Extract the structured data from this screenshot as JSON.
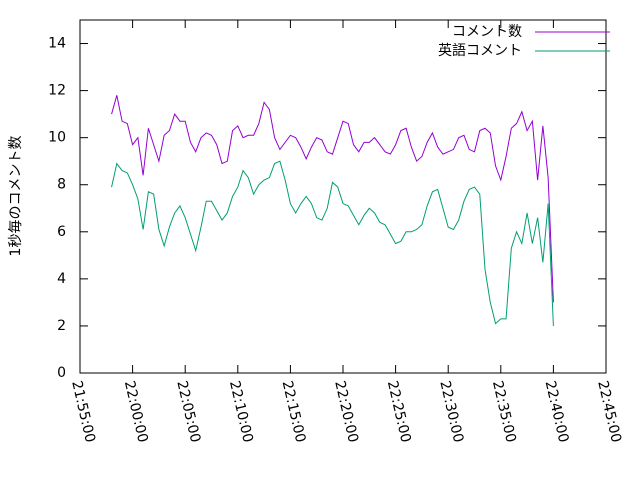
{
  "chart_data": {
    "type": "line",
    "y_label": "1秒毎のコメント数",
    "x": [
      "21:58:00",
      "21:58:30",
      "21:59:00",
      "21:59:30",
      "22:00:00",
      "22:00:30",
      "22:01:00",
      "22:01:30",
      "22:02:00",
      "22:02:30",
      "22:03:00",
      "22:03:30",
      "22:04:00",
      "22:04:30",
      "22:05:00",
      "22:05:30",
      "22:06:00",
      "22:06:30",
      "22:07:00",
      "22:07:30",
      "22:08:00",
      "22:08:30",
      "22:09:00",
      "22:09:30",
      "22:10:00",
      "22:10:30",
      "22:11:00",
      "22:11:30",
      "22:12:00",
      "22:12:30",
      "22:13:00",
      "22:13:30",
      "22:14:00",
      "22:14:30",
      "22:15:00",
      "22:15:30",
      "22:16:00",
      "22:16:30",
      "22:17:00",
      "22:17:30",
      "22:18:00",
      "22:18:30",
      "22:19:00",
      "22:19:30",
      "22:20:00",
      "22:20:30",
      "22:21:00",
      "22:21:30",
      "22:22:00",
      "22:22:30",
      "22:23:00",
      "22:23:30",
      "22:24:00",
      "22:24:30",
      "22:25:00",
      "22:25:30",
      "22:26:00",
      "22:26:30",
      "22:27:00",
      "22:27:30",
      "22:28:00",
      "22:28:30",
      "22:29:00",
      "22:29:30",
      "22:30:00",
      "22:30:30",
      "22:31:00",
      "22:31:30",
      "22:32:00",
      "22:32:30",
      "22:33:00",
      "22:33:30",
      "22:34:00",
      "22:34:30",
      "22:35:00",
      "22:35:30",
      "22:36:00",
      "22:36:30",
      "22:37:00",
      "22:37:30",
      "22:38:00",
      "22:38:30",
      "22:39:00",
      "22:39:30",
      "22:40:00"
    ],
    "series": [
      {
        "name": "コメント数",
        "color": "#9400d3",
        "values": [
          11.0,
          11.8,
          10.7,
          10.6,
          9.7,
          10.0,
          8.4,
          10.4,
          9.7,
          9.0,
          10.1,
          10.3,
          11.0,
          10.7,
          10.7,
          9.8,
          9.4,
          10.0,
          10.2,
          10.1,
          9.7,
          8.9,
          9.0,
          10.3,
          10.5,
          10.0,
          10.1,
          10.1,
          10.6,
          11.5,
          11.2,
          10.0,
          9.5,
          9.8,
          10.1,
          10.0,
          9.6,
          9.1,
          9.6,
          10.0,
          9.9,
          9.4,
          9.3,
          10.0,
          10.7,
          10.6,
          9.7,
          9.4,
          9.8,
          9.8,
          10.0,
          9.7,
          9.4,
          9.3,
          9.7,
          10.3,
          10.4,
          9.6,
          9.0,
          9.2,
          9.8,
          10.2,
          9.6,
          9.3,
          9.4,
          9.5,
          10.0,
          10.1,
          9.5,
          9.4,
          10.3,
          10.4,
          10.2,
          8.8,
          8.2,
          9.2,
          10.4,
          10.6,
          11.1,
          10.3,
          10.7,
          8.2,
          10.5,
          8.3,
          3.0
        ]
      },
      {
        "name": "英語コメント",
        "color": "#009e73",
        "values": [
          7.9,
          8.9,
          8.6,
          8.5,
          8.0,
          7.4,
          6.1,
          7.7,
          7.6,
          6.1,
          5.4,
          6.2,
          6.8,
          7.1,
          6.6,
          5.9,
          5.2,
          6.2,
          7.3,
          7.3,
          6.9,
          6.5,
          6.8,
          7.5,
          7.9,
          8.6,
          8.3,
          7.6,
          8.0,
          8.2,
          8.3,
          8.9,
          9.0,
          8.2,
          7.2,
          6.8,
          7.2,
          7.5,
          7.2,
          6.6,
          6.5,
          7.0,
          8.1,
          7.9,
          7.2,
          7.1,
          6.7,
          6.3,
          6.7,
          7.0,
          6.8,
          6.4,
          6.3,
          5.9,
          5.5,
          5.6,
          6.0,
          6.0,
          6.1,
          6.3,
          7.1,
          7.7,
          7.8,
          7.0,
          6.2,
          6.1,
          6.5,
          7.3,
          7.8,
          7.9,
          7.6,
          4.4,
          3.0,
          2.1,
          2.3,
          2.3,
          5.3,
          6.0,
          5.5,
          6.8,
          5.5,
          6.6,
          4.7,
          7.2,
          2.0
        ]
      }
    ],
    "xlim": [
      "21:55:00",
      "22:45:00"
    ],
    "xticks": [
      "21:55:00",
      "22:00:00",
      "22:05:00",
      "22:10:00",
      "22:15:00",
      "22:20:00",
      "22:25:00",
      "22:30:00",
      "22:35:00",
      "22:40:00",
      "22:45:00"
    ],
    "ylim": [
      0,
      15
    ],
    "yticks": [
      0,
      2,
      4,
      6,
      8,
      10,
      12,
      14
    ],
    "legend": "top-right",
    "grid": false
  }
}
